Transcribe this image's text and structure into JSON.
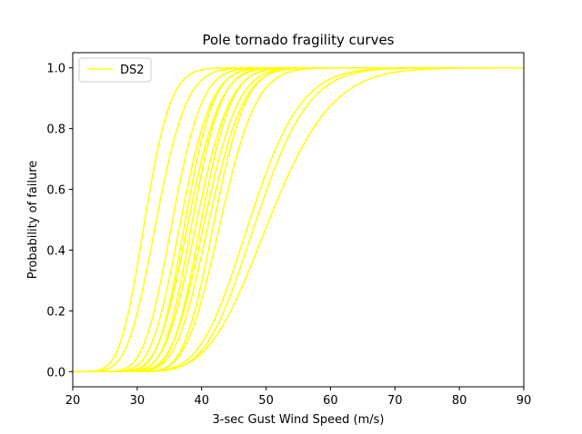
{
  "chart_data": {
    "type": "line",
    "title": "Pole tornado fragility curves",
    "xlabel": "3-sec Gust Wind Speed (m/s)",
    "ylabel": "Probability of failure",
    "xlim": [
      20,
      90
    ],
    "ylim": [
      -0.05,
      1.05
    ],
    "xticks": [
      "20",
      "30",
      "40",
      "50",
      "60",
      "70",
      "80",
      "90"
    ],
    "yticks": [
      "0.0",
      "0.2",
      "0.4",
      "0.6",
      "0.8",
      "1.0"
    ],
    "grid": false,
    "legend": {
      "position": "upper-left",
      "entries": [
        "DS2"
      ]
    },
    "line_color": "#ffff00",
    "curve_family": "lognormal-cdf",
    "series": [
      {
        "name": "DS2",
        "median": 31.2,
        "beta": 0.1
      },
      {
        "median": 33.0,
        "beta": 0.11
      },
      {
        "median": 35.5,
        "beta": 0.1
      },
      {
        "median": 36.8,
        "beta": 0.1
      },
      {
        "median": 37.5,
        "beta": 0.09
      },
      {
        "median": 38.0,
        "beta": 0.1
      },
      {
        "median": 38.6,
        "beta": 0.09
      },
      {
        "median": 39.3,
        "beta": 0.1
      },
      {
        "median": 40.0,
        "beta": 0.09
      },
      {
        "median": 40.5,
        "beta": 0.1
      },
      {
        "median": 41.2,
        "beta": 0.1
      },
      {
        "median": 42.0,
        "beta": 0.09
      },
      {
        "median": 43.0,
        "beta": 0.1
      },
      {
        "median": 47.5,
        "beta": 0.13
      },
      {
        "median": 48.5,
        "beta": 0.13
      },
      {
        "median": 50.5,
        "beta": 0.15
      }
    ]
  }
}
